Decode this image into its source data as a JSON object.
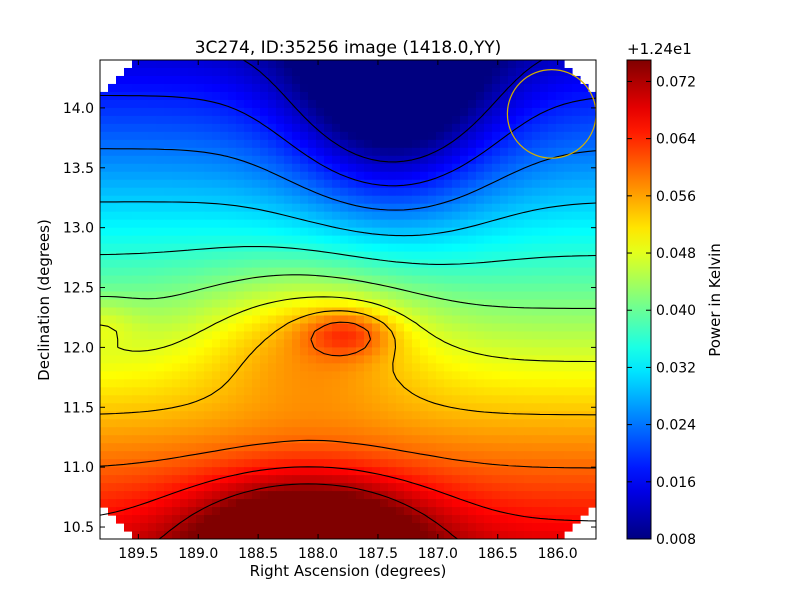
{
  "chart_data": {
    "type": "heatmap",
    "title": "3C274, ID:35256 image (1418.0,YY)",
    "xlabel": "Right Ascension (degrees)",
    "ylabel": "Declination (degrees)",
    "xlim": [
      189.82,
      185.68
    ],
    "ylim": [
      10.4,
      14.4
    ],
    "x_ticks": [
      189.5,
      189.0,
      188.5,
      188.0,
      187.5,
      187.0,
      186.5,
      186.0
    ],
    "x_tick_labels": [
      "189.5",
      "189.0",
      "188.5",
      "188.0",
      "187.5",
      "187.0",
      "186.5",
      "186.0"
    ],
    "y_ticks": [
      10.5,
      11.0,
      11.5,
      12.0,
      12.5,
      13.0,
      13.5,
      14.0
    ],
    "y_tick_labels": [
      "10.5",
      "11.0",
      "11.5",
      "12.0",
      "12.5",
      "13.0",
      "13.5",
      "14.0"
    ],
    "colormap": "jet",
    "colorbar": {
      "label": "Power in Kelvin",
      "offset_label": "+1.24e1",
      "range": [
        0.008,
        0.075
      ],
      "ticks": [
        0.008,
        0.016,
        0.024,
        0.032,
        0.04,
        0.048,
        0.056,
        0.064,
        0.072
      ],
      "tick_labels": [
        "0.008",
        "0.016",
        "0.024",
        "0.032",
        "0.040",
        "0.048",
        "0.056",
        "0.064",
        "0.072"
      ]
    },
    "features": [
      {
        "kind": "maximum",
        "ra": 188.0,
        "dec": 10.45,
        "value": 0.075
      },
      {
        "kind": "maximum",
        "ra": 187.75,
        "dec": 12.15,
        "value": 0.071
      },
      {
        "kind": "minimum",
        "ra": 187.3,
        "dec": 14.35,
        "value": 0.008
      }
    ],
    "annotations": [
      {
        "kind": "beam-circle",
        "ra": 186.05,
        "dec": 13.95,
        "radius_deg": 0.37,
        "color": "#d4b000"
      }
    ],
    "contour_color": "#000000",
    "grid": false
  }
}
